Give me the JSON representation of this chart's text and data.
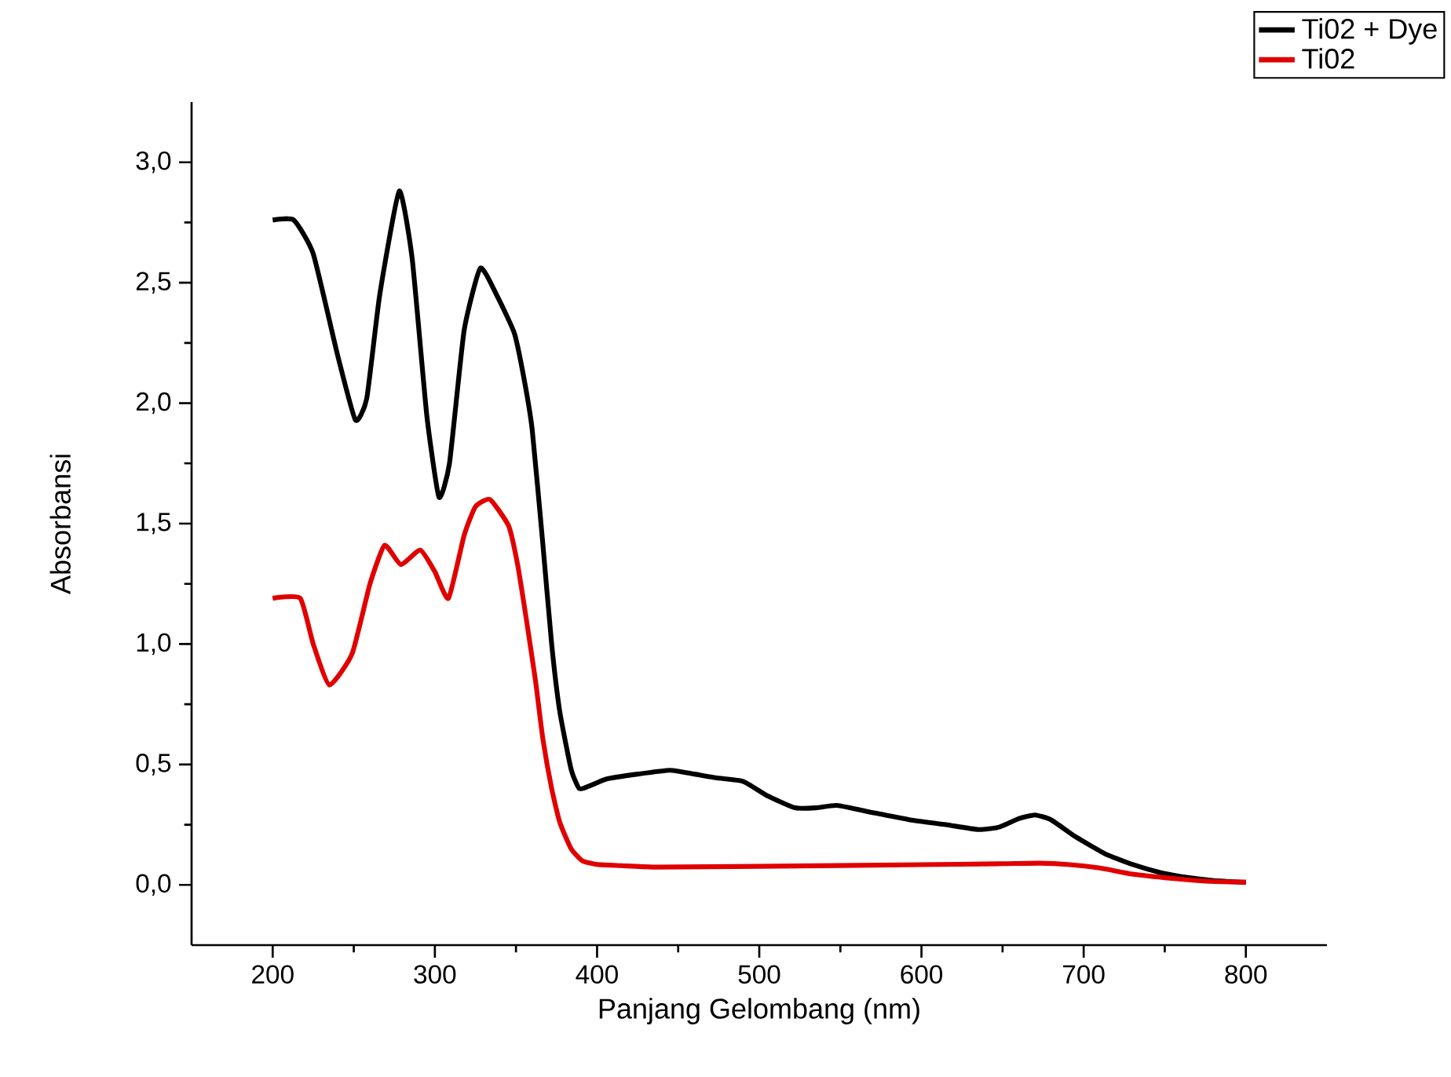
{
  "chart_data": {
    "type": "line",
    "xlabel": "Panjang Gelombang (nm)",
    "ylabel": "Absorbansi",
    "xlim": [
      150,
      850
    ],
    "ylim": [
      -0.25,
      3.25
    ],
    "xticks": [
      200,
      300,
      400,
      500,
      600,
      700,
      800
    ],
    "yticks": [
      {
        "value": 0,
        "label": "0,0"
      },
      {
        "value": 0.5,
        "label": "0,5"
      },
      {
        "value": 1,
        "label": "1,0"
      },
      {
        "value": 1.5,
        "label": "1,5"
      },
      {
        "value": 2,
        "label": "2,0"
      },
      {
        "value": 2.5,
        "label": "2,5"
      },
      {
        "value": 3,
        "label": "3,0"
      }
    ],
    "legend": "top right",
    "series": [
      {
        "name": "Ti02 + Dye",
        "color": "#000000",
        "x": [
          200,
          213,
          225,
          240,
          251,
          258,
          266,
          278,
          286,
          295,
          302.5,
          309,
          318,
          328,
          338,
          349,
          355,
          360,
          366.5,
          372,
          377,
          384,
          389,
          395,
          406,
          425,
          445,
          460,
          474,
          490,
          505,
          522,
          535,
          548,
          570,
          593,
          615,
          635,
          648,
          660,
          670,
          680,
          695,
          713,
          730,
          748,
          765,
          780,
          800
        ],
        "values": [
          2.76,
          2.76,
          2.62,
          2.2,
          1.93,
          2.02,
          2.45,
          2.88,
          2.6,
          1.95,
          1.61,
          1.75,
          2.3,
          2.56,
          2.45,
          2.29,
          2.1,
          1.89,
          1.42,
          1.0,
          0.72,
          0.48,
          0.4,
          0.41,
          0.44,
          0.46,
          0.476,
          0.46,
          0.444,
          0.43,
          0.37,
          0.32,
          0.32,
          0.33,
          0.3,
          0.27,
          0.25,
          0.23,
          0.24,
          0.275,
          0.29,
          0.27,
          0.2,
          0.13,
          0.085,
          0.05,
          0.03,
          0.018,
          0.01
        ]
      },
      {
        "name": "Ti02",
        "color": "#e00000",
        "x": [
          200,
          217,
          225,
          235,
          249,
          260,
          269,
          279,
          291,
          300,
          308.4,
          318,
          325,
          334,
          345.5,
          351,
          356,
          362,
          366.5,
          372,
          377,
          384,
          391,
          400,
          415,
          435,
          500,
          600,
          650,
          673,
          690,
          710,
          730,
          750,
          770,
          785,
          800
        ],
        "values": [
          1.19,
          1.19,
          1.0,
          0.83,
          0.96,
          1.25,
          1.41,
          1.33,
          1.39,
          1.3,
          1.19,
          1.45,
          1.57,
          1.6,
          1.49,
          1.33,
          1.12,
          0.85,
          0.61,
          0.4,
          0.26,
          0.15,
          0.1,
          0.085,
          0.08,
          0.074,
          0.077,
          0.084,
          0.088,
          0.09,
          0.085,
          0.07,
          0.045,
          0.03,
          0.018,
          0.013,
          0.012
        ]
      }
    ]
  }
}
